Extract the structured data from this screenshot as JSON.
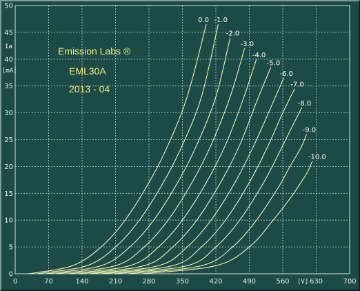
{
  "chart_data": {
    "type": "line",
    "title": "",
    "xlabel": "",
    "ylabel": "",
    "x_unit_label": "[V]",
    "y_unit_label": "[mA]",
    "y_axis_label": "Ia",
    "xlim": [
      0,
      700
    ],
    "ylim": [
      0,
      50
    ],
    "x_ticks": [
      "0",
      "70",
      "140",
      "210",
      "280",
      "350",
      "420",
      "490",
      "560",
      "630",
      "700"
    ],
    "y_ticks": [
      "0",
      "5",
      "10",
      "15",
      "20",
      "25",
      "30",
      "35",
      "40",
      "45",
      "50"
    ],
    "grid": true,
    "annotations": [
      "Emission Labs ®",
      "EML30A",
      "2013 - 04"
    ],
    "series": [
      {
        "name": "0.0",
        "x": [
          28,
          120,
          180,
          230,
          280,
          320,
          360,
          400
        ],
        "y": [
          0,
          1.5,
          5,
          10,
          17,
          24,
          33,
          46.5
        ]
      },
      {
        "name": "-1.0",
        "x": [
          45,
          150,
          210,
          260,
          310,
          350,
          390,
          425
        ],
        "y": [
          0,
          1.5,
          5,
          10,
          17,
          24,
          33,
          46.5
        ]
      },
      {
        "name": "-2.0",
        "x": [
          65,
          180,
          240,
          290,
          340,
          380,
          420,
          450
        ],
        "y": [
          0,
          1.5,
          5,
          10,
          17,
          24,
          33,
          44
        ]
      },
      {
        "name": "-3.0",
        "x": [
          85,
          210,
          270,
          320,
          370,
          410,
          450,
          480
        ],
        "y": [
          0,
          1.5,
          5,
          10,
          17,
          24,
          33,
          42
        ]
      },
      {
        "name": "-4.0",
        "x": [
          110,
          240,
          300,
          350,
          400,
          440,
          475,
          505
        ],
        "y": [
          0,
          1.5,
          5,
          10,
          17,
          24,
          32,
          40
        ]
      },
      {
        "name": "-5.0",
        "x": [
          130,
          270,
          330,
          380,
          430,
          470,
          505,
          535
        ],
        "y": [
          0,
          1.5,
          5,
          10,
          17,
          24,
          32,
          38.5
        ]
      },
      {
        "name": "-6.0",
        "x": [
          155,
          300,
          360,
          410,
          460,
          500,
          535,
          562
        ],
        "y": [
          0,
          1.5,
          5,
          10,
          17,
          24,
          31,
          36.5
        ]
      },
      {
        "name": "-7.0",
        "x": [
          180,
          330,
          390,
          440,
          490,
          530,
          560,
          585
        ],
        "y": [
          0,
          1.5,
          5,
          10,
          17,
          24,
          30,
          34.5
        ]
      },
      {
        "name": "-8.0",
        "x": [
          205,
          360,
          420,
          470,
          520,
          555,
          580,
          600
        ],
        "y": [
          0,
          1.5,
          5,
          10,
          17,
          23,
          27.5,
          31
        ]
      },
      {
        "name": "-9.0",
        "x": [
          235,
          390,
          455,
          505,
          550,
          575,
          598,
          610
        ],
        "y": [
          0,
          1.5,
          5,
          10,
          16,
          20,
          23.5,
          26
        ]
      },
      {
        "name": "-10.0",
        "x": [
          265,
          420,
          490,
          540,
          575,
          598,
          612,
          622
        ],
        "y": [
          0,
          1.5,
          5,
          10,
          14,
          17,
          19,
          21
        ]
      }
    ],
    "colors": {
      "background": "#1c4a46",
      "grid": "#b8d0c8",
      "curve": "#f4f4b0",
      "annotation": "#f2f07a",
      "text": "#e8f2e8"
    }
  }
}
